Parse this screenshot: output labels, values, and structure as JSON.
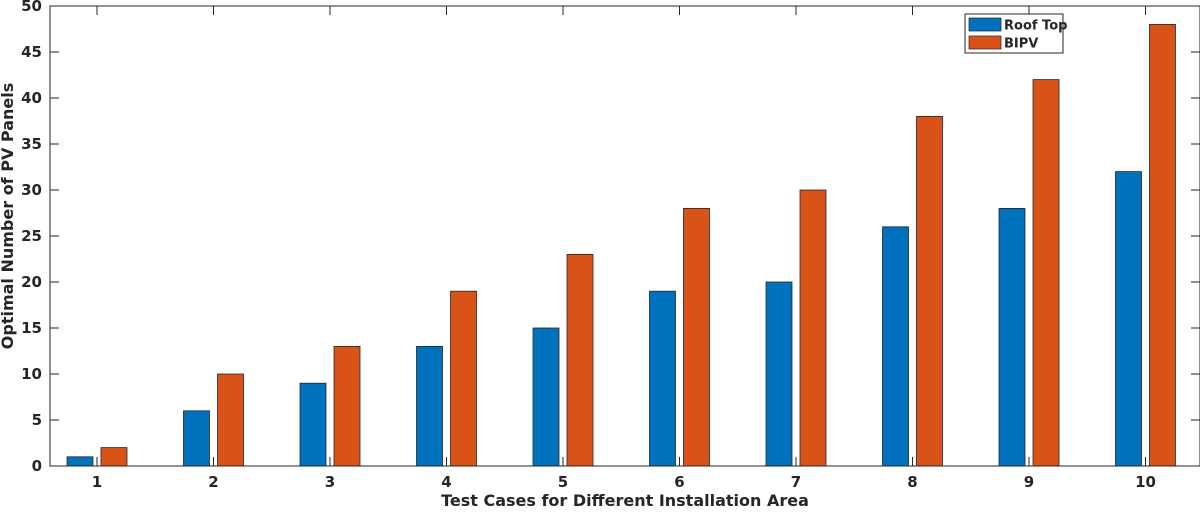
{
  "chart_data": {
    "type": "bar",
    "categories": [
      "1",
      "2",
      "3",
      "4",
      "5",
      "6",
      "7",
      "8",
      "9",
      "10"
    ],
    "series": [
      {
        "name": "Roof Top",
        "values": [
          1,
          6,
          9,
          13,
          15,
          19,
          20,
          26,
          28,
          32
        ],
        "color": "#0072bd"
      },
      {
        "name": "BIPV",
        "values": [
          2,
          10,
          13,
          19,
          23,
          28,
          30,
          38,
          42,
          48
        ],
        "color": "#d95319"
      }
    ],
    "xlabel": "Test Cases for Different Installation Area",
    "ylabel": "Optimal Number of PV Panels",
    "ylim": [
      0,
      50
    ],
    "yticks": [
      "0",
      "5",
      "10",
      "15",
      "20",
      "25",
      "30",
      "35",
      "40",
      "45",
      "50"
    ],
    "grid": false,
    "legend_position": "top-right"
  }
}
